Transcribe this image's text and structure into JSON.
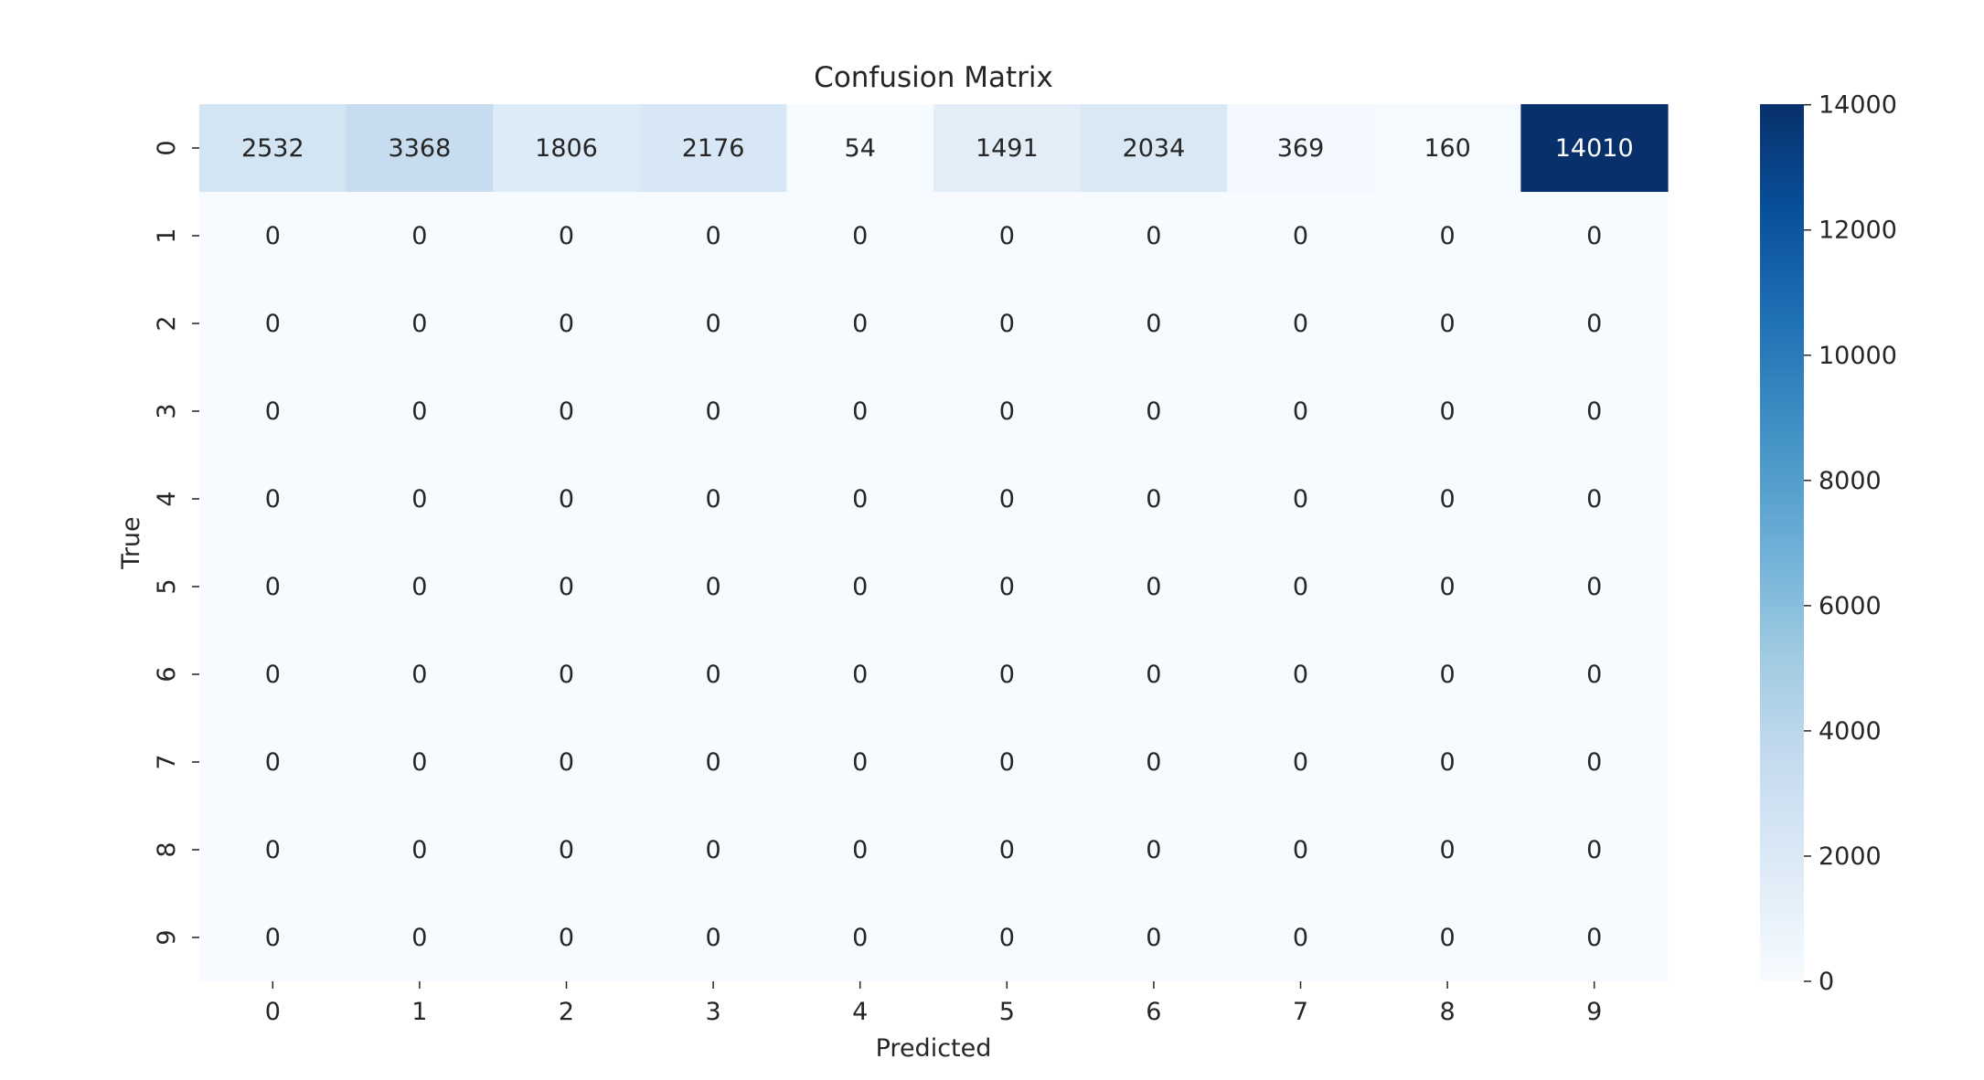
{
  "chart_data": {
    "type": "heatmap",
    "title": "Confusion Matrix",
    "xlabel": "Predicted",
    "ylabel": "True",
    "x_categories": [
      "0",
      "1",
      "2",
      "3",
      "4",
      "5",
      "6",
      "7",
      "8",
      "9"
    ],
    "y_categories": [
      "0",
      "1",
      "2",
      "3",
      "4",
      "5",
      "6",
      "7",
      "8",
      "9"
    ],
    "values": [
      [
        2532,
        3368,
        1806,
        2176,
        54,
        1491,
        2034,
        369,
        160,
        14010
      ],
      [
        0,
        0,
        0,
        0,
        0,
        0,
        0,
        0,
        0,
        0
      ],
      [
        0,
        0,
        0,
        0,
        0,
        0,
        0,
        0,
        0,
        0
      ],
      [
        0,
        0,
        0,
        0,
        0,
        0,
        0,
        0,
        0,
        0
      ],
      [
        0,
        0,
        0,
        0,
        0,
        0,
        0,
        0,
        0,
        0
      ],
      [
        0,
        0,
        0,
        0,
        0,
        0,
        0,
        0,
        0,
        0
      ],
      [
        0,
        0,
        0,
        0,
        0,
        0,
        0,
        0,
        0,
        0
      ],
      [
        0,
        0,
        0,
        0,
        0,
        0,
        0,
        0,
        0,
        0
      ],
      [
        0,
        0,
        0,
        0,
        0,
        0,
        0,
        0,
        0,
        0
      ],
      [
        0,
        0,
        0,
        0,
        0,
        0,
        0,
        0,
        0,
        0
      ]
    ],
    "colormap": "Blues",
    "colorbar": {
      "range": [
        0,
        14010
      ],
      "ticks": [
        0,
        2000,
        4000,
        6000,
        8000,
        10000,
        12000,
        14000
      ]
    }
  }
}
